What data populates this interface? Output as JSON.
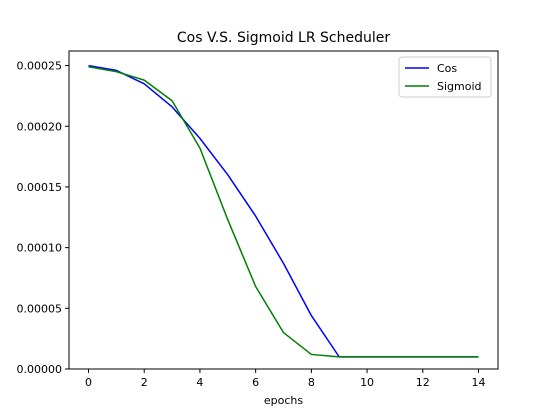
{
  "chart_data": {
    "type": "line",
    "title": "Cos V.S. Sigmoid LR Scheduler",
    "xlabel": "epochs",
    "ylabel": "",
    "x": [
      0,
      1,
      2,
      3,
      4,
      5,
      6,
      7,
      8,
      9,
      10,
      11,
      12,
      13,
      14
    ],
    "xlim": [
      -0.7,
      14.7
    ],
    "ylim": [
      0,
      0.000262
    ],
    "xticks": [
      0,
      2,
      4,
      6,
      8,
      10,
      12,
      14
    ],
    "xtick_labels": [
      "0",
      "2",
      "4",
      "6",
      "8",
      "10",
      "12",
      "14"
    ],
    "yticks": [
      0,
      5e-05,
      0.0001,
      0.00015,
      0.0002,
      0.00025
    ],
    "ytick_labels": [
      "0.00000",
      "0.00005",
      "0.00010",
      "0.00015",
      "0.00020",
      "0.00025"
    ],
    "grid": false,
    "legend_position": "top-right",
    "series": [
      {
        "name": "Cos",
        "color": "#0000ff",
        "values": [
          0.00025,
          0.000246,
          0.000235,
          0.000216,
          0.00019,
          0.00016,
          0.000126,
          8.7e-05,
          4.4e-05,
          1e-05,
          1e-05,
          1e-05,
          1e-05,
          1e-05,
          1e-05
        ]
      },
      {
        "name": "Sigmoid",
        "color": "#008000",
        "values": [
          0.000249,
          0.000245,
          0.000238,
          0.000221,
          0.000182,
          0.000123,
          6.8e-05,
          3e-05,
          1.2e-05,
          1e-05,
          1e-05,
          1e-05,
          1e-05,
          1e-05,
          1e-05
        ]
      }
    ]
  }
}
